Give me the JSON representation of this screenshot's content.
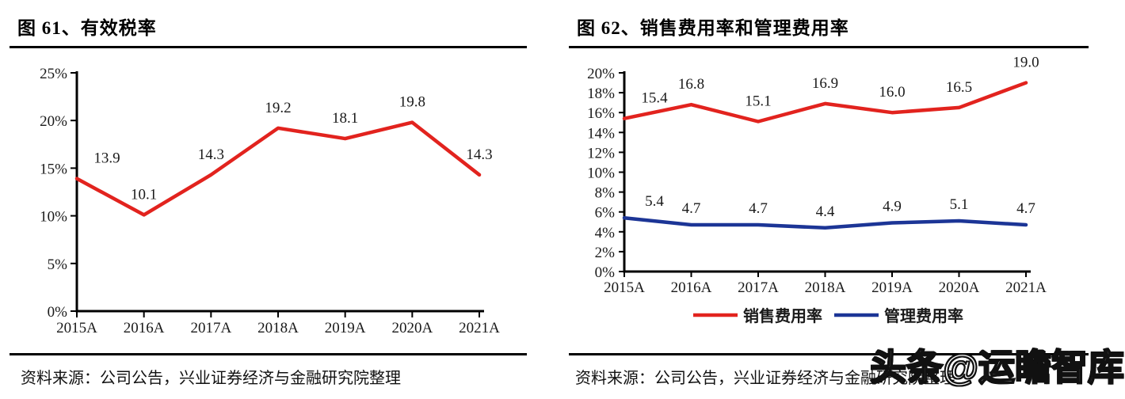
{
  "watermark": {
    "text": "头条@运瞻智库"
  },
  "chart_data": [
    {
      "type": "line",
      "title": "图 61、有效税率",
      "categories": [
        "2015A",
        "2016A",
        "2017A",
        "2018A",
        "2019A",
        "2020A",
        "2021A"
      ],
      "series": [
        {
          "name": "有效税率",
          "color": "#e2231e",
          "values": [
            13.9,
            10.1,
            14.3,
            19.2,
            18.1,
            19.8,
            14.3
          ]
        }
      ],
      "xlabel": "",
      "ylabel": "",
      "ylim": [
        0,
        25
      ],
      "ytick_step": 5,
      "ytick_suffix": "%",
      "grid": false,
      "legend_position": "none",
      "data_labels": true,
      "source": "资料来源：公司公告，兴业证券经济与金融研究院整理"
    },
    {
      "type": "line",
      "title": "图 62、销售费用率和管理费用率",
      "categories": [
        "2015A",
        "2016A",
        "2017A",
        "2018A",
        "2019A",
        "2020A",
        "2021A"
      ],
      "series": [
        {
          "name": "销售费用率",
          "color": "#e2231e",
          "values": [
            15.4,
            16.8,
            15.1,
            16.9,
            16.0,
            16.5,
            19.0
          ]
        },
        {
          "name": "管理费用率",
          "color": "#1c3596",
          "values": [
            5.4,
            4.7,
            4.7,
            4.4,
            4.9,
            5.1,
            4.7
          ]
        }
      ],
      "xlabel": "",
      "ylabel": "",
      "ylim": [
        0,
        20
      ],
      "ytick_step": 2,
      "ytick_suffix": "%",
      "grid": false,
      "legend_position": "bottom",
      "data_labels": true,
      "source": "资料来源：公司公告，兴业证券经济与金融研究院整理"
    }
  ]
}
